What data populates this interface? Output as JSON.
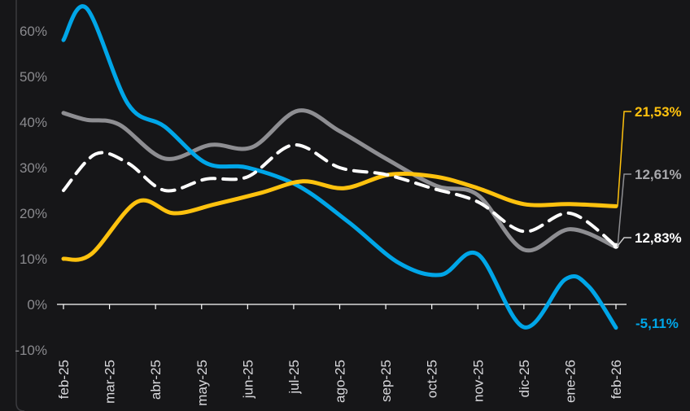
{
  "chart_data": {
    "type": "line",
    "categories": [
      "feb-25",
      "mar-25",
      "abr-25",
      "may-25",
      "jun-25",
      "jul-25",
      "ago-25",
      "sep-25",
      "oct-25",
      "nov-25",
      "dic-25",
      "ene-26",
      "feb-26"
    ],
    "y_ticks": [
      "60%",
      "50%",
      "40%",
      "30%",
      "20%",
      "10%",
      "0%",
      "-10%"
    ],
    "ylim": [
      -10,
      60
    ],
    "grid": false,
    "series": [
      {
        "color": "#00a6e8",
        "style": "solid",
        "x": [
          0,
          0.5,
          1.4,
          2.2,
          3.1,
          4.0,
          5.1,
          6.2,
          7.3,
          8.2,
          9.0,
          10.0,
          10.9,
          11.4,
          12.0
        ],
        "values": [
          58,
          65,
          44,
          39,
          31,
          30,
          26,
          18,
          9,
          6.5,
          11,
          -5,
          5.5,
          4,
          -5.11
        ],
        "end_label": "-5,11%"
      },
      {
        "color": "#8e8e92",
        "style": "solid",
        "x": [
          0,
          0.5,
          1.2,
          2.2,
          3.2,
          4.1,
          5.1,
          6.0,
          7.0,
          8.1,
          9.0,
          10.0,
          11.0,
          12.0
        ],
        "values": [
          42,
          40.5,
          39.5,
          32,
          35,
          34.5,
          42.5,
          38,
          32,
          26,
          24,
          12,
          16.5,
          12.61
        ],
        "end_label": "12,61%"
      },
      {
        "color": "#ffffff",
        "style": "dashed",
        "x": [
          0,
          0.7,
          1.4,
          2.2,
          3.1,
          4.0,
          5.0,
          6.0,
          7.0,
          8.0,
          9.0,
          10.0,
          11.0,
          12.0
        ],
        "values": [
          25,
          33,
          31,
          25,
          27.5,
          28,
          35,
          30,
          28.5,
          25.5,
          22.5,
          16,
          20,
          12.83
        ],
        "end_label": "12,83%"
      },
      {
        "color": "#ffc20e",
        "style": "solid",
        "x": [
          0,
          0.6,
          1.6,
          2.4,
          3.3,
          4.3,
          5.2,
          6.1,
          7.1,
          8.1,
          9.0,
          10.0,
          11.0,
          12.0
        ],
        "values": [
          10,
          11,
          22.5,
          20,
          22,
          24.5,
          27,
          25.5,
          28.5,
          28,
          25.5,
          22,
          22,
          21.53
        ],
        "end_label": "21,53%"
      }
    ]
  }
}
